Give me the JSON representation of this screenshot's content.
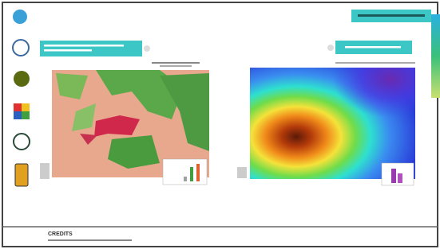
{
  "footer": {
    "title": "CREDITS"
  }
}
